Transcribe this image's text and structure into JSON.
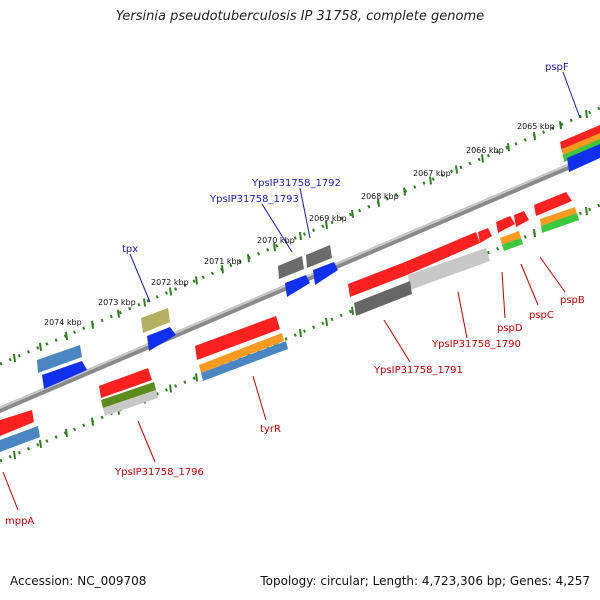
{
  "title": "Yersinia pseudotuberculosis IP 31758, complete genome",
  "footer": {
    "accession": "Accession: NC_009708",
    "topology": "Topology: circular; Length: 4,723,306 bp; Genes: 4,257"
  },
  "scale": {
    "labels": [
      "2065 kbp",
      "2066 kbp",
      "2067 kbp",
      "2068 kbp",
      "2069 kbp",
      "2070 kbp",
      "2071 kbp",
      "2072 kbp",
      "2073 kbp",
      "2074 kbp"
    ]
  },
  "genes": {
    "top_strand": [
      "pspF",
      "YpsIP31758_1792",
      "YpsIP31758_1793",
      "tpx"
    ],
    "bottom_strand": [
      "pspB",
      "pspC",
      "pspD",
      "YpsIP31758_1790",
      "YpsIP31758_1791",
      "tyrR",
      "YpsIP31758_1796",
      "mppA"
    ]
  },
  "colors": {
    "label_top": "#1a1aa6",
    "label_bottom": "#c00000",
    "backbone": "#8c8c8c",
    "ticks": "#2e7d1e"
  }
}
